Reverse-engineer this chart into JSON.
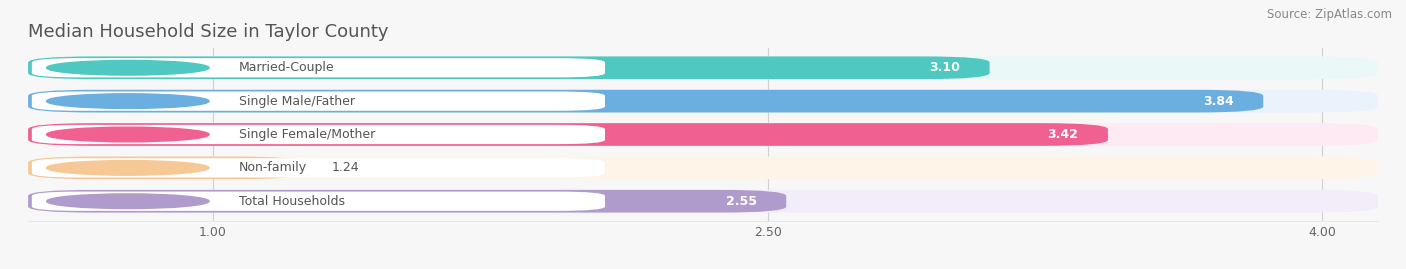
{
  "title": "Median Household Size in Taylor County",
  "source": "Source: ZipAtlas.com",
  "categories": [
    "Married-Couple",
    "Single Male/Father",
    "Single Female/Mother",
    "Non-family",
    "Total Households"
  ],
  "values": [
    3.1,
    3.84,
    3.42,
    1.24,
    2.55
  ],
  "bar_colors": [
    "#4ec8c0",
    "#6baee0",
    "#f06090",
    "#f5c896",
    "#b09ccc"
  ],
  "bar_bg_colors": [
    "#eaf8f8",
    "#eaf2fc",
    "#fdeaf2",
    "#fef5e8",
    "#f2edf8"
  ],
  "dot_colors": [
    "#4ec8c0",
    "#6baee0",
    "#f06090",
    "#f5c896",
    "#b09ccc"
  ],
  "xlim": [
    0.5,
    4.15
  ],
  "xstart": 0.5,
  "xticks": [
    1.0,
    2.5,
    4.0
  ],
  "title_fontsize": 13,
  "label_fontsize": 9,
  "value_fontsize": 9,
  "source_fontsize": 8.5,
  "bg_color": "#f7f7f7"
}
